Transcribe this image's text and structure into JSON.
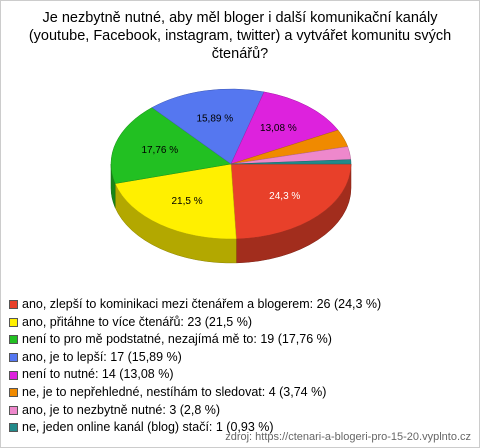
{
  "chart_data": {
    "type": "pie",
    "title": "Je nezbytně nutné, aby měl bloger i další komunikační kanály (youtube, Facebook, instagram, twitter) a vytvářet komunitu svých čtenářů?",
    "categories": [
      "ano, zlepší to kominikaci mezi čtenářem a blogerem: 26 (24,3 %)",
      "ano, přitáhne to více čtenářů: 23 (21,5 %)",
      "není to pro mě podstatné, nezajímá mě to: 19 (17,76 %)",
      "ano, je to lepší: 17 (15,89 %)",
      "není to nutné: 14 (13,08 %)",
      "ne, je to nepřehledné, nestíhám to sledovat: 4 (3,74 %)",
      "ano, je to nezbytně nutné: 3 (2,8 %)",
      "ne, jeden online kanál (blog) stačí: 1 (0,93 %)"
    ],
    "values": [
      24.3,
      21.5,
      17.76,
      15.89,
      13.08,
      3.74,
      2.8,
      0.93
    ],
    "value_labels": [
      "24,3 %",
      "21,5 %",
      "17,76 %",
      "15,89 %",
      "13,08 %",
      null,
      null,
      null
    ],
    "colors": [
      "#e8402a",
      "#fff000",
      "#22c022",
      "#5577f0",
      "#dd22dd",
      "#f08a00",
      "#ee88cc",
      "#228a8a"
    ],
    "source": "zdroj: https://ctenari-a-blogeri-pro-15-20.vyplnto.cz"
  }
}
